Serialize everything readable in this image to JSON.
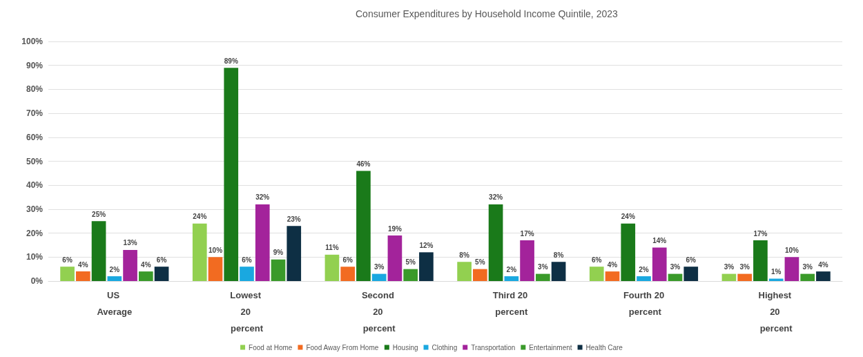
{
  "chart_data": {
    "type": "bar",
    "title": "Consumer Expenditures by Household Income Quintile, 2023",
    "categories": [
      "US Average",
      "Lowest 20 percent",
      "Second 20 percent",
      "Third 20 percent",
      "Fourth 20 percent",
      "Highest 20 percent"
    ],
    "series": [
      {
        "name": "Food at Home",
        "color": "#92d050",
        "values": [
          6,
          24,
          11,
          8,
          6,
          3
        ],
        "value_labels": [
          "6%",
          "24%",
          "11%",
          "8%",
          "6%",
          "3%"
        ]
      },
      {
        "name": "Food Away From Home",
        "color": "#f26b21",
        "values": [
          4,
          10,
          6,
          5,
          4,
          3
        ],
        "value_labels": [
          "4%",
          "10%",
          "6%",
          "5%",
          "4%",
          "3%"
        ]
      },
      {
        "name": "Housing",
        "color": "#1a7a1a",
        "values": [
          25,
          89,
          46,
          32,
          24,
          17
        ],
        "value_labels": [
          "25%",
          "89%",
          "46%",
          "32%",
          "24%",
          "17%"
        ]
      },
      {
        "name": "Clothing",
        "color": "#1aa8e0",
        "values": [
          2,
          6,
          3,
          2,
          2,
          1
        ],
        "value_labels": [
          "2%",
          "6%",
          "3%",
          "2%",
          "2%",
          "1%"
        ]
      },
      {
        "name": "Transportation",
        "color": "#a3239b",
        "values": [
          13,
          32,
          19,
          17,
          14,
          10
        ],
        "value_labels": [
          "13%",
          "32%",
          "19%",
          "17%",
          "14%",
          "10%"
        ]
      },
      {
        "name": "Entertainment",
        "color": "#3a9a2a",
        "values": [
          4,
          9,
          5,
          3,
          3,
          3
        ],
        "value_labels": [
          "4%",
          "9%",
          "5%",
          "3%",
          "3%",
          "3%"
        ]
      },
      {
        "name": "Health Care",
        "color": "#0e2f44",
        "values": [
          6,
          23,
          12,
          8,
          6,
          4
        ],
        "value_labels": [
          "6%",
          "23%",
          "12%",
          "8%",
          "6%",
          "4%"
        ]
      }
    ],
    "ylim": [
      0,
      100
    ],
    "yticks": [
      {
        "value": 0,
        "label": "0%"
      },
      {
        "value": 10,
        "label": "10%"
      },
      {
        "value": 20,
        "label": "20%"
      },
      {
        "value": 30,
        "label": "30%"
      },
      {
        "value": 40,
        "label": "40%"
      },
      {
        "value": 50,
        "label": "50%"
      },
      {
        "value": 60,
        "label": "60%"
      },
      {
        "value": 70,
        "label": "70%"
      },
      {
        "value": 80,
        "label": "80%"
      },
      {
        "value": 90,
        "label": "90%"
      },
      {
        "value": 100,
        "label": "100%"
      }
    ],
    "grid": "y",
    "legend": "bottom"
  }
}
